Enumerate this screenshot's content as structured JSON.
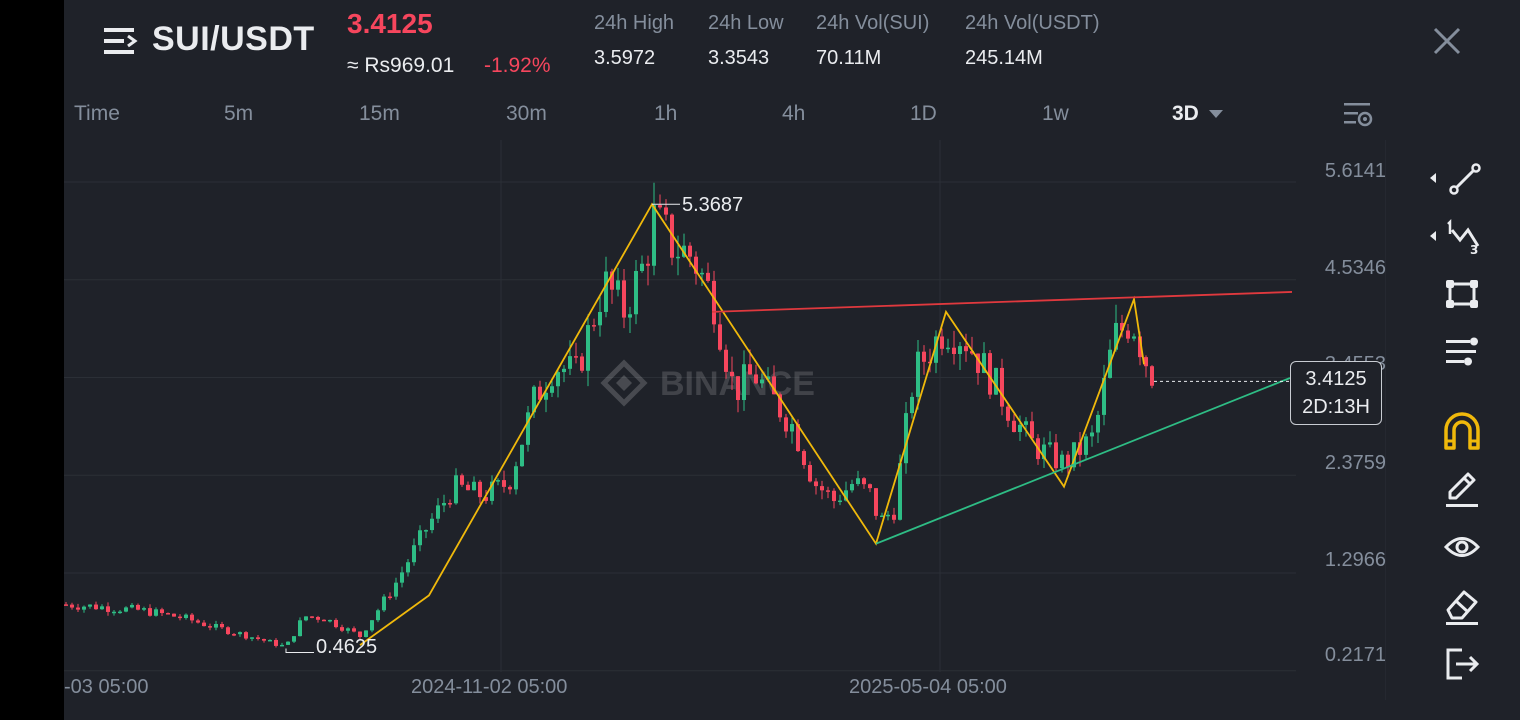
{
  "header": {
    "pair": "SUI/USDT",
    "price": "3.4125",
    "approx_price": "≈ Rs969.01",
    "change": "-1.92%",
    "stats": [
      {
        "label": "24h High",
        "value": "3.5972"
      },
      {
        "label": "24h Low",
        "value": "3.3543"
      },
      {
        "label": "24h Vol(SUI)",
        "value": "70.11M"
      },
      {
        "label": "24h Vol(USDT)",
        "value": "245.14M"
      }
    ]
  },
  "tabs": [
    "Time",
    "5m",
    "15m",
    "30m",
    "1h",
    "4h",
    "1D",
    "1w",
    "3D"
  ],
  "active_tab": "3D",
  "chart": {
    "watermark": "BINANCE",
    "y_labels": [
      "5.6141",
      "4.5346",
      "3.4553",
      "2.3759",
      "1.2966",
      "0.2171"
    ],
    "x_labels": [
      "-03 05:00",
      "2024-11-02 05:00",
      "2025-05-04 05:00"
    ],
    "high_label": "5.3687",
    "low_label": "0.4625",
    "current_price": "3.4125",
    "countdown": "2D:13H"
  },
  "chart_data": {
    "type": "candlestick",
    "symbol": "SUI/USDT",
    "interval": "3D",
    "y_ticks": [
      5.6141,
      4.5346,
      3.4553,
      2.3759,
      1.2966,
      0.2171
    ],
    "ylim": [
      0.1,
      5.8
    ],
    "x_ticks": [
      "-03 05:00",
      "2024-11-02 05:00",
      "2025-05-04 05:00"
    ],
    "marked_high": 5.3687,
    "marked_low": 0.4625,
    "last_price": 3.4125,
    "colors": {
      "up": "#2ebd85",
      "down": "#f6465d",
      "zigzag": "#f0b90b",
      "resistance": "#e0393e",
      "support": "#2ebd85"
    }
  },
  "toolbar": {
    "tools": [
      "trend-line",
      "fib-wave",
      "rectangle",
      "multi-line",
      "magnet",
      "pencil",
      "eye",
      "eraser",
      "exit"
    ]
  },
  "colors": {
    "up": "#2ebd85",
    "down": "#f6465d",
    "accent": "#f0b90b",
    "bg": "#1f2229"
  }
}
